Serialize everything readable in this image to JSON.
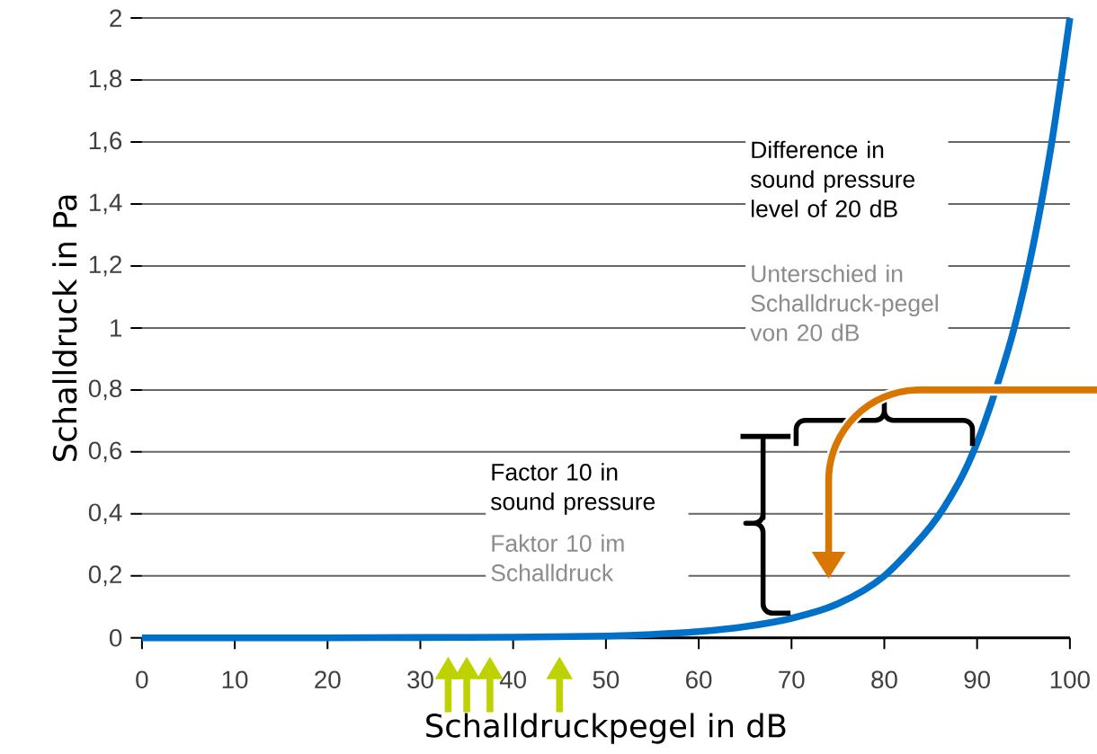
{
  "chart_data": {
    "type": "line",
    "xlabel": "Schalldruckpegel in dB",
    "ylabel": "Schalldruck in Pa",
    "x": [
      0,
      10,
      20,
      30,
      40,
      50,
      55,
      60,
      65,
      70,
      75,
      80,
      85,
      88,
      90,
      92,
      94,
      96,
      98,
      100
    ],
    "series": [
      {
        "color": "#0070c8",
        "values": [
          0,
          0,
          0,
          0.001,
          0.002,
          0.006,
          0.011,
          0.02,
          0.036,
          0.063,
          0.11,
          0.2,
          0.36,
          0.5,
          0.63,
          0.8,
          1.0,
          1.26,
          1.59,
          2.0
        ]
      }
    ],
    "xlim": [
      0,
      100
    ],
    "xticks": [
      0,
      10,
      20,
      30,
      40,
      50,
      60,
      70,
      80,
      90,
      100
    ],
    "ylim": [
      0,
      2
    ],
    "yticks": [
      {
        "value": 0,
        "label": "0"
      },
      {
        "value": 0.2,
        "label": "0,2"
      },
      {
        "value": 0.4,
        "label": "0,4"
      },
      {
        "value": 0.6,
        "label": "0,6"
      },
      {
        "value": 0.8,
        "label": "0,8"
      },
      {
        "value": 1,
        "label": "1"
      },
      {
        "value": 1.2,
        "label": "1,2"
      },
      {
        "value": 1.4,
        "label": "1,4"
      },
      {
        "value": 1.6,
        "label": "1,6"
      },
      {
        "value": 1.8,
        "label": "1,8"
      },
      {
        "value": 2,
        "label": "2"
      }
    ],
    "grid": "y",
    "marker": "none",
    "line_style": "solid",
    "annotations": [
      "Difference in sound pressure level of 20 dB",
      "Unterschied in Schalldruck-pegel von 20 dB",
      "Factor 10 in sound pressure",
      "Faktor 10 im Schalldruck"
    ]
  }
}
